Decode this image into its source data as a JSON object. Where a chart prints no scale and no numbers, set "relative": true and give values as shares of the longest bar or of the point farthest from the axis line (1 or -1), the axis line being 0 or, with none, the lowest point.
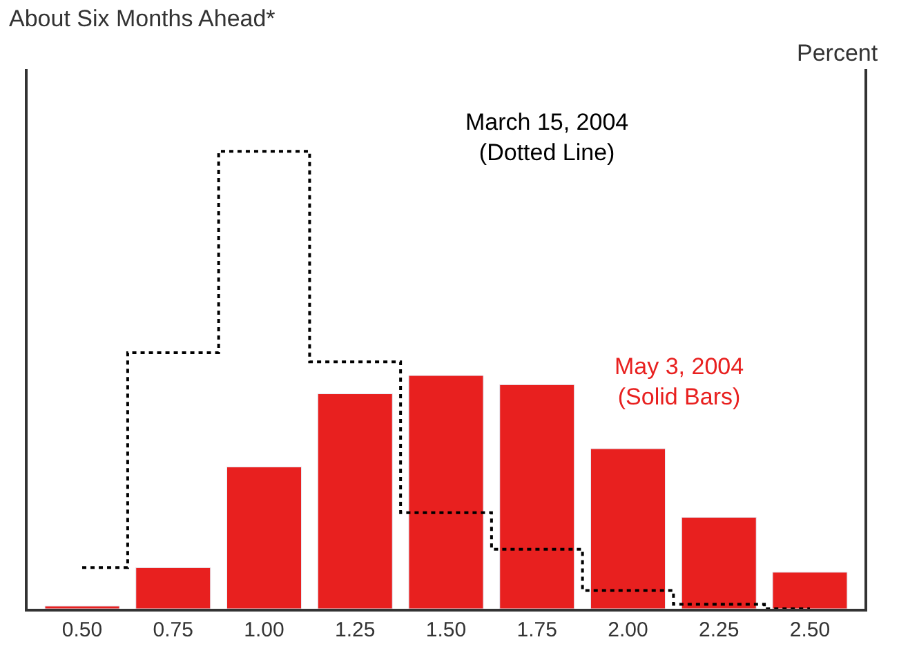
{
  "chart_data": {
    "type": "bar",
    "title": "About Six Months Ahead*",
    "ylabel": "Percent",
    "relative": true,
    "legend": false,
    "categories": [
      "0.50",
      "0.75",
      "1.00",
      "1.25",
      "1.50",
      "1.75",
      "2.00",
      "2.25",
      "2.50"
    ],
    "series": [
      {
        "name": "May 3, 2004 (Solid Bars)",
        "color": "#e8201f",
        "values": [
          0.006,
          0.09,
          0.31,
          0.47,
          0.51,
          0.49,
          0.35,
          0.2,
          0.08
        ]
      },
      {
        "name": "March 15, 2004 (Dotted Line)",
        "type": "step",
        "color": "#000000",
        "line_style": "dotted",
        "values": [
          0.09,
          0.56,
          1,
          0.54,
          0.21,
          0.13,
          0.04,
          0.01,
          0
        ]
      }
    ]
  }
}
